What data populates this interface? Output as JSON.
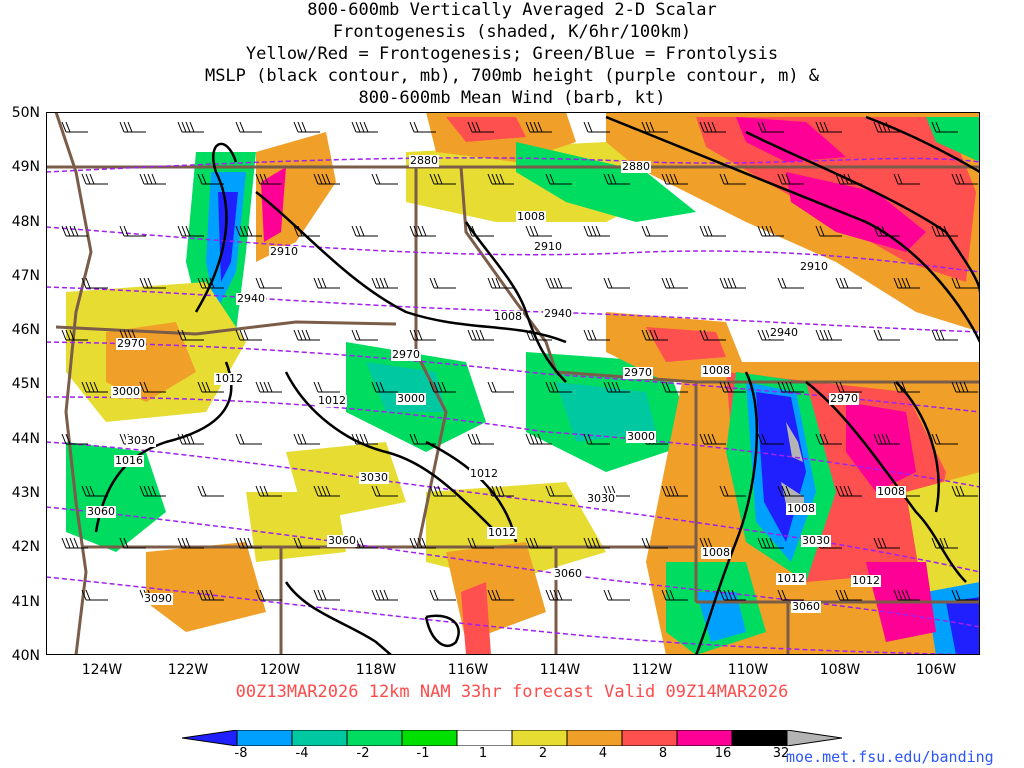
{
  "title_lines": [
    "800-600mb Vertically Averaged 2-D Scalar",
    "Frontogenesis (shaded, K/6hr/100km)",
    "Yellow/Red = Frontogenesis;  Green/Blue = Frontolysis",
    "MSLP (black contour, mb), 700mb height (purple contour, m) &",
    "800-600mb Mean Wind (barb, kt)"
  ],
  "lat_labels": [
    "50N",
    "49N",
    "48N",
    "47N",
    "46N",
    "45N",
    "44N",
    "43N",
    "42N",
    "41N",
    "40N"
  ],
  "lon_labels": [
    "124W",
    "122W",
    "120W",
    "118W",
    "116W",
    "114W",
    "112W",
    "110W",
    "108W",
    "106W"
  ],
  "footer": "00Z13MAR2026 12km NAM 33hr forecast Valid 09Z14MAR2026",
  "credit": "moe.met.fsu.edu/banding",
  "colorbar": {
    "labels": [
      "-8",
      "-4",
      "-2",
      "-1",
      "1",
      "2",
      "4",
      "8",
      "16",
      "32"
    ],
    "colors": [
      "#2020ff",
      "#00a0ff",
      "#00c8a0",
      "#00dc60",
      "#00e000",
      "#ffffff",
      "#e6dc32",
      "#f0a028",
      "#ff5050",
      "#ff0096",
      "#000000",
      "#b4b4b4"
    ]
  },
  "map": {
    "colors": {
      "background": "#ffffff",
      "yellow": "#e6dc32",
      "orange": "#f0a028",
      "red": "#ff5050",
      "magenta": "#ff0096",
      "green": "#00dc60",
      "teal": "#00c8a0",
      "cyan": "#00a0ff",
      "blue": "#2020ff",
      "gray": "#b4b4b4",
      "border": "#7a5c48",
      "height": "#a020f0",
      "mslp": "#000000"
    },
    "height_contour_labels": [
      "2880",
      "2880",
      "2910",
      "2910",
      "2910",
      "2940",
      "2940",
      "2940",
      "2970",
      "2970",
      "2970",
      "2970",
      "3000",
      "3000",
      "3000",
      "3030",
      "3030",
      "3030",
      "3030",
      "3060",
      "3060",
      "3060",
      "3060",
      "3090"
    ],
    "mslp_contour_labels": [
      "1008",
      "1008",
      "1008",
      "1008",
      "1008",
      "1008",
      "1012",
      "1012",
      "1012",
      "1012",
      "1012",
      "1012",
      "1016"
    ]
  }
}
